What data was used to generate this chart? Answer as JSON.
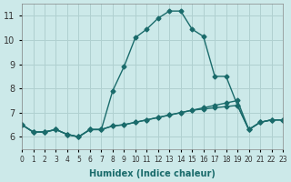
{
  "xlabel": "Humidex (Indice chaleur)",
  "ylabel": "",
  "xlim": [
    0,
    23
  ],
  "ylim": [
    5.5,
    11.5
  ],
  "yticks": [
    6,
    7,
    8,
    9,
    10,
    11
  ],
  "xticks": [
    0,
    1,
    2,
    3,
    4,
    5,
    6,
    7,
    8,
    9,
    10,
    11,
    12,
    13,
    14,
    15,
    16,
    17,
    18,
    19,
    20,
    21,
    22,
    23
  ],
  "background_color": "#cce9e9",
  "grid_color": "#b0d0d0",
  "line_color": "#1a6b6b",
  "lines": [
    {
      "x": [
        0,
        1,
        2,
        3,
        4,
        5,
        6,
        7,
        8,
        9,
        10,
        11,
        12,
        13,
        14,
        15,
        16,
        17,
        18,
        19,
        20,
        21,
        22,
        23
      ],
      "y": [
        6.5,
        6.2,
        6.2,
        6.3,
        6.1,
        6.0,
        6.3,
        6.3,
        7.9,
        8.9,
        10.1,
        10.45,
        10.9,
        11.2,
        11.2,
        10.45,
        10.15,
        8.5,
        8.5,
        7.3,
        6.3,
        6.6,
        6.7,
        6.7
      ]
    },
    {
      "x": [
        0,
        1,
        2,
        3,
        4,
        5,
        6,
        7,
        8,
        9,
        10,
        11,
        12,
        13,
        14,
        15,
        16,
        17,
        18,
        19,
        20,
        21,
        22,
        23
      ],
      "y": [
        6.5,
        6.2,
        6.2,
        6.3,
        6.1,
        6.0,
        6.3,
        6.3,
        6.45,
        6.5,
        6.6,
        6.7,
        6.8,
        6.9,
        7.0,
        7.1,
        7.2,
        7.3,
        7.4,
        7.5,
        6.3,
        6.6,
        6.7,
        6.7
      ]
    },
    {
      "x": [
        0,
        1,
        2,
        3,
        4,
        5,
        6,
        7,
        8,
        9,
        10,
        11,
        12,
        13,
        14,
        15,
        16,
        17,
        18,
        19,
        20,
        21,
        22,
        23
      ],
      "y": [
        6.5,
        6.2,
        6.2,
        6.3,
        6.1,
        6.0,
        6.3,
        6.3,
        6.45,
        6.5,
        6.6,
        6.7,
        6.8,
        6.9,
        7.0,
        7.1,
        7.15,
        7.2,
        7.25,
        7.3,
        6.3,
        6.6,
        6.7,
        6.7
      ]
    }
  ]
}
